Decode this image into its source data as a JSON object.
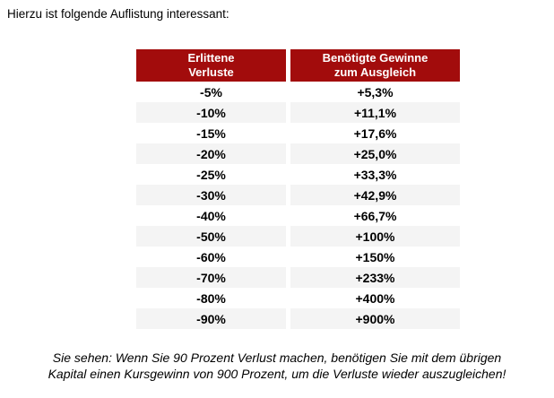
{
  "intro": "Hierzu ist folgende Auflistung interessant:",
  "table": {
    "header": {
      "col1_line1": "Erlittene",
      "col1_line2": "Verluste",
      "col2_line1": "Benötigte Gewinne",
      "col2_line2": "zum Ausgleich"
    },
    "rows": [
      {
        "loss": "-5%",
        "gain": "+5,3%"
      },
      {
        "loss": "-10%",
        "gain": "+11,1%"
      },
      {
        "loss": "-15%",
        "gain": "+17,6%"
      },
      {
        "loss": "-20%",
        "gain": "+25,0%"
      },
      {
        "loss": "-25%",
        "gain": "+33,3%"
      },
      {
        "loss": "-30%",
        "gain": "+42,9%"
      },
      {
        "loss": "-40%",
        "gain": "+66,7%"
      },
      {
        "loss": "-50%",
        "gain": "+100%"
      },
      {
        "loss": "-60%",
        "gain": "+150%"
      },
      {
        "loss": "-70%",
        "gain": "+233%"
      },
      {
        "loss": "-80%",
        "gain": "+400%"
      },
      {
        "loss": "-90%",
        "gain": "+900%"
      }
    ]
  },
  "footer": {
    "line1": "Sie sehen: Wenn Sie 90 Prozent Verlust machen, benötigen Sie mit dem übrigen",
    "line2": "Kapital einen Kursgewinn von 900 Prozent, um die Verluste wieder auszugleichen!"
  },
  "colors": {
    "header_bg": "#A20C0C",
    "header_text": "#FFFFFF",
    "row_alt_bg": "#F4F4F4",
    "body_text": "#000000"
  }
}
